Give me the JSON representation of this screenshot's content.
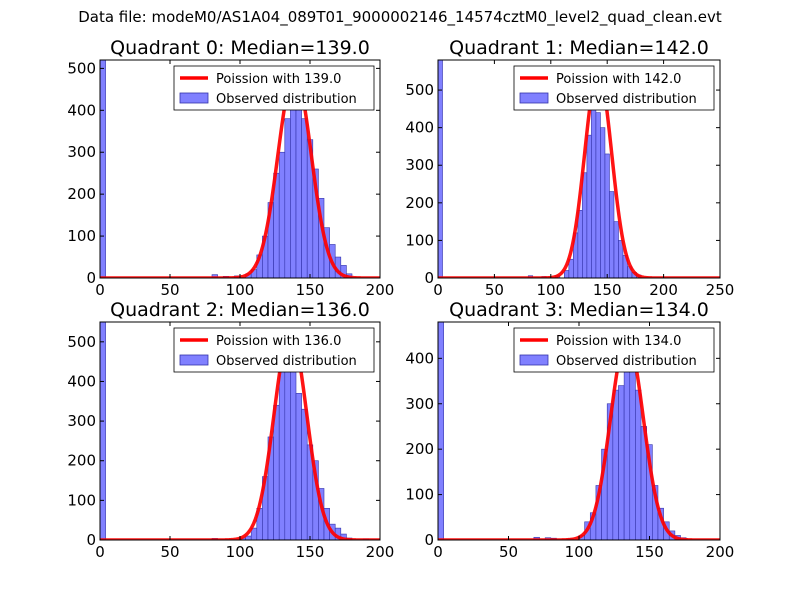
{
  "figure": {
    "suptitle": "Data file: modeM0/AS1A04_089T01_9000002146_14574cztM0_level2_quad_clean.evt"
  },
  "colors": {
    "bar_fill": "#8080ff",
    "bar_edge": "#3333aa",
    "curve": "#ff0000",
    "axis": "#000000"
  },
  "chart_data": [
    {
      "type": "bar",
      "title": "Quadrant 0: Median=139.0",
      "xlim": [
        0,
        200
      ],
      "ylim": [
        0,
        520
      ],
      "xticks": [
        0,
        50,
        100,
        150,
        200
      ],
      "yticks": [
        0,
        100,
        200,
        300,
        400,
        500
      ],
      "legend": {
        "position": "top-right",
        "curve_label": "Poission with 139.0",
        "bar_label": "Observed distribution"
      },
      "median": 139.0,
      "curve_peak": 490,
      "bins": [
        {
          "x": 0,
          "w": 4,
          "v": 520
        },
        {
          "x": 80,
          "w": 4,
          "v": 8
        },
        {
          "x": 88,
          "w": 4,
          "v": 4
        },
        {
          "x": 96,
          "w": 4,
          "v": 5
        },
        {
          "x": 104,
          "w": 4,
          "v": 10
        },
        {
          "x": 108,
          "w": 4,
          "v": 20
        },
        {
          "x": 112,
          "w": 4,
          "v": 55
        },
        {
          "x": 116,
          "w": 4,
          "v": 100
        },
        {
          "x": 120,
          "w": 4,
          "v": 180
        },
        {
          "x": 124,
          "w": 4,
          "v": 250
        },
        {
          "x": 128,
          "w": 4,
          "v": 300
        },
        {
          "x": 132,
          "w": 4,
          "v": 380
        },
        {
          "x": 136,
          "w": 4,
          "v": 440
        },
        {
          "x": 140,
          "w": 4,
          "v": 460
        },
        {
          "x": 144,
          "w": 4,
          "v": 380
        },
        {
          "x": 148,
          "w": 4,
          "v": 330
        },
        {
          "x": 152,
          "w": 4,
          "v": 260
        },
        {
          "x": 156,
          "w": 4,
          "v": 190
        },
        {
          "x": 160,
          "w": 4,
          "v": 120
        },
        {
          "x": 164,
          "w": 4,
          "v": 80
        },
        {
          "x": 168,
          "w": 4,
          "v": 50
        },
        {
          "x": 172,
          "w": 4,
          "v": 30
        },
        {
          "x": 176,
          "w": 4,
          "v": 10
        }
      ]
    },
    {
      "type": "bar",
      "title": "Quadrant 1: Median=142.0",
      "xlim": [
        0,
        250
      ],
      "ylim": [
        0,
        580
      ],
      "xticks": [
        0,
        50,
        100,
        150,
        200,
        250
      ],
      "yticks": [
        0,
        100,
        200,
        300,
        400,
        500
      ],
      "legend": {
        "position": "top-right",
        "curve_label": "Poission with 142.0",
        "bar_label": "Observed distribution"
      },
      "median": 142.0,
      "curve_peak": 550,
      "bins": [
        {
          "x": 0,
          "w": 4,
          "v": 580
        },
        {
          "x": 80,
          "w": 4,
          "v": 6
        },
        {
          "x": 92,
          "w": 4,
          "v": 4
        },
        {
          "x": 104,
          "w": 4,
          "v": 6
        },
        {
          "x": 112,
          "w": 4,
          "v": 20
        },
        {
          "x": 116,
          "w": 4,
          "v": 50
        },
        {
          "x": 120,
          "w": 4,
          "v": 120
        },
        {
          "x": 124,
          "w": 4,
          "v": 180
        },
        {
          "x": 128,
          "w": 4,
          "v": 280
        },
        {
          "x": 132,
          "w": 4,
          "v": 380
        },
        {
          "x": 136,
          "w": 4,
          "v": 450
        },
        {
          "x": 140,
          "w": 4,
          "v": 440
        },
        {
          "x": 144,
          "w": 4,
          "v": 400
        },
        {
          "x": 148,
          "w": 4,
          "v": 330
        },
        {
          "x": 152,
          "w": 4,
          "v": 230
        },
        {
          "x": 156,
          "w": 4,
          "v": 150
        },
        {
          "x": 160,
          "w": 4,
          "v": 100
        },
        {
          "x": 164,
          "w": 4,
          "v": 60
        },
        {
          "x": 168,
          "w": 4,
          "v": 30
        },
        {
          "x": 172,
          "w": 4,
          "v": 15
        },
        {
          "x": 176,
          "w": 4,
          "v": 8
        }
      ]
    },
    {
      "type": "bar",
      "title": "Quadrant 2: Median=136.0",
      "xlim": [
        0,
        200
      ],
      "ylim": [
        0,
        550
      ],
      "xticks": [
        0,
        50,
        100,
        150,
        200
      ],
      "yticks": [
        0,
        100,
        200,
        300,
        400,
        500
      ],
      "legend": {
        "position": "top-right",
        "curve_label": "Poission with 136.0",
        "bar_label": "Observed distribution"
      },
      "median": 136.0,
      "curve_peak": 525,
      "bins": [
        {
          "x": 0,
          "w": 4,
          "v": 550
        },
        {
          "x": 80,
          "w": 4,
          "v": 4
        },
        {
          "x": 100,
          "w": 4,
          "v": 5
        },
        {
          "x": 104,
          "w": 4,
          "v": 10
        },
        {
          "x": 108,
          "w": 4,
          "v": 30
        },
        {
          "x": 112,
          "w": 4,
          "v": 80
        },
        {
          "x": 116,
          "w": 4,
          "v": 160
        },
        {
          "x": 120,
          "w": 4,
          "v": 260
        },
        {
          "x": 124,
          "w": 4,
          "v": 340
        },
        {
          "x": 128,
          "w": 4,
          "v": 450
        },
        {
          "x": 132,
          "w": 4,
          "v": 480
        },
        {
          "x": 136,
          "w": 4,
          "v": 520
        },
        {
          "x": 140,
          "w": 4,
          "v": 370
        },
        {
          "x": 144,
          "w": 4,
          "v": 330
        },
        {
          "x": 148,
          "w": 4,
          "v": 240
        },
        {
          "x": 152,
          "w": 4,
          "v": 200
        },
        {
          "x": 156,
          "w": 4,
          "v": 130
        },
        {
          "x": 160,
          "w": 4,
          "v": 80
        },
        {
          "x": 164,
          "w": 4,
          "v": 40
        },
        {
          "x": 168,
          "w": 4,
          "v": 30
        },
        {
          "x": 172,
          "w": 4,
          "v": 15
        },
        {
          "x": 176,
          "w": 4,
          "v": 5
        },
        {
          "x": 188,
          "w": 4,
          "v": 3
        }
      ]
    },
    {
      "type": "bar",
      "title": "Quadrant 3: Median=134.0",
      "xlim": [
        0,
        200
      ],
      "ylim": [
        0,
        480
      ],
      "xticks": [
        0,
        50,
        100,
        150,
        200
      ],
      "yticks": [
        0,
        100,
        200,
        300,
        400
      ],
      "legend": {
        "position": "top-right",
        "curve_label": "Poission with 134.0",
        "bar_label": "Observed distribution"
      },
      "median": 134.0,
      "curve_peak": 445,
      "bins": [
        {
          "x": 0,
          "w": 4,
          "v": 480
        },
        {
          "x": 68,
          "w": 4,
          "v": 6
        },
        {
          "x": 76,
          "w": 4,
          "v": 5
        },
        {
          "x": 80,
          "w": 4,
          "v": 4
        },
        {
          "x": 92,
          "w": 4,
          "v": 3
        },
        {
          "x": 100,
          "w": 4,
          "v": 10
        },
        {
          "x": 104,
          "w": 4,
          "v": 40
        },
        {
          "x": 108,
          "w": 4,
          "v": 60
        },
        {
          "x": 112,
          "w": 4,
          "v": 120
        },
        {
          "x": 116,
          "w": 4,
          "v": 200
        },
        {
          "x": 120,
          "w": 4,
          "v": 300
        },
        {
          "x": 124,
          "w": 4,
          "v": 330
        },
        {
          "x": 128,
          "w": 4,
          "v": 340
        },
        {
          "x": 132,
          "w": 4,
          "v": 400
        },
        {
          "x": 136,
          "w": 4,
          "v": 430
        },
        {
          "x": 140,
          "w": 4,
          "v": 330
        },
        {
          "x": 144,
          "w": 4,
          "v": 250
        },
        {
          "x": 148,
          "w": 4,
          "v": 210
        },
        {
          "x": 152,
          "w": 4,
          "v": 120
        },
        {
          "x": 156,
          "w": 4,
          "v": 70
        },
        {
          "x": 160,
          "w": 4,
          "v": 40
        },
        {
          "x": 164,
          "w": 4,
          "v": 20
        },
        {
          "x": 168,
          "w": 4,
          "v": 10
        },
        {
          "x": 172,
          "w": 4,
          "v": 5
        }
      ]
    }
  ]
}
